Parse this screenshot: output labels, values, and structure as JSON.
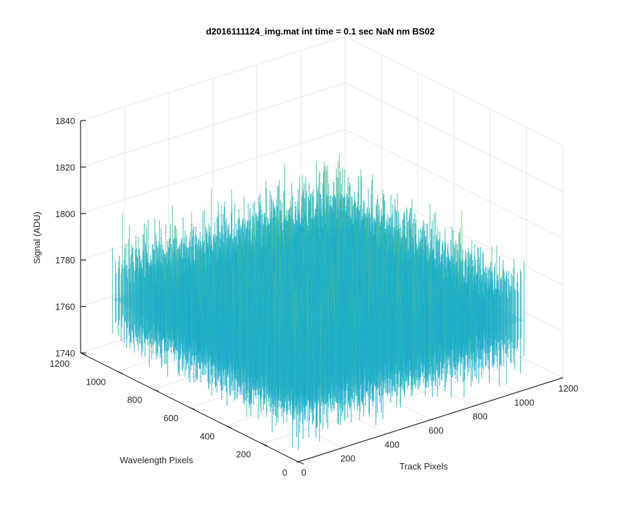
{
  "chart_data": {
    "type": "surface",
    "title": "d2016111124_img.mat int time = 0.1 sec  NaN nm BS02",
    "xlabel": "Track Pixels",
    "ylabel": "Wavelength Pixels",
    "zlabel": "Signal (ADU)",
    "xlim": [
      0,
      1200
    ],
    "ylim": [
      0,
      1200
    ],
    "zlim": [
      1740,
      1840
    ],
    "x_ticks": [
      0,
      200,
      400,
      600,
      800,
      1000,
      1200
    ],
    "y_ticks": [
      0,
      200,
      400,
      600,
      800,
      1000,
      1200
    ],
    "z_ticks": [
      1740,
      1760,
      1780,
      1800,
      1820,
      1840
    ],
    "grid": true,
    "colormap": "parula",
    "surface_extent": {
      "x": [
        0,
        1024
      ],
      "y": [
        0,
        1024
      ]
    },
    "surface_mean": 1770,
    "surface_min_approx": 1745,
    "surface_max_approx": 1830,
    "colors": {
      "low": "#0d7be0",
      "mid": "#1fb4c2",
      "high": "#a6c849",
      "peak": "#d9c23c"
    }
  }
}
